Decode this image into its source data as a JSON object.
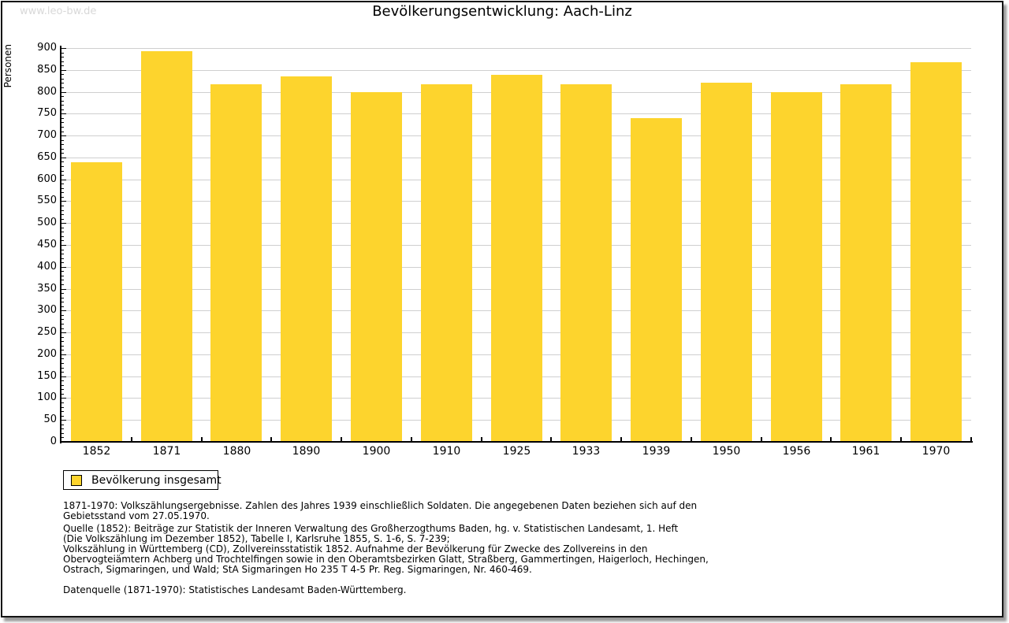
{
  "watermark": "www.leo-bw.de",
  "title": "Bevölkerungsentwicklung: Aach-Linz",
  "chart_data": {
    "type": "bar",
    "title": "Bevölkerungsentwicklung: Aach-Linz",
    "ylabel": "Personen",
    "xlabel": "",
    "categories": [
      "1852",
      "1871",
      "1880",
      "1890",
      "1900",
      "1910",
      "1925",
      "1933",
      "1939",
      "1950",
      "1956",
      "1961",
      "1970"
    ],
    "values": [
      639,
      892,
      817,
      836,
      799,
      818,
      838,
      818,
      739,
      820,
      800,
      817,
      868
    ],
    "series": [
      {
        "name": "Bevölkerung insgesamt",
        "values": [
          639,
          892,
          817,
          836,
          799,
          818,
          838,
          818,
          739,
          820,
          800,
          817,
          868
        ]
      }
    ],
    "ylim": [
      0,
      900
    ],
    "ytick_major": 50,
    "ytick_minor": 10,
    "grid": true,
    "legend_entries": [
      "Bevölkerung insgesamt"
    ],
    "legend_position": "bottom-left",
    "bar_color": "#FDD42D"
  },
  "legend": {
    "label": "Bevölkerung insgesamt"
  },
  "footnotes": {
    "para1": [
      "1871-1970: Volkszählungsergebnisse. Zahlen des Jahres 1939 einschließlich Soldaten. Die angegebenen Daten beziehen sich auf den",
      "Gebietsstand vom 27.05.1970."
    ],
    "para2": [
      "Quelle (1852): Beiträge zur Statistik der Inneren Verwaltung des Großherzogthums Baden, hg. v. Statistischen Landesamt, 1. Heft",
      "(Die Volkszählung im Dezember 1852), Tabelle I, Karlsruhe 1855, S. 1-6, S. 7-239;",
      "Volkszählung in Württemberg (CD), Zollvereinsstatistik 1852. Aufnahme der Bevölkerung für Zwecke des Zollvereins in den",
      "Obervogteiämtern Achberg und Trochtelfingen sowie in den Oberamtsbezirken Glatt, Straßberg, Gammertingen, Haigerloch, Hechingen,",
      "Ostrach, Sigmaringen, und Wald; StA Sigmaringen Ho 235 T 4-5 Pr. Reg. Sigmaringen, Nr. 460-469."
    ],
    "para3": [
      "Datenquelle (1871-1970): Statistisches Landesamt Baden-Württemberg."
    ]
  },
  "colors": {
    "bar": "#FDD42D",
    "grid": "#CFCFCF",
    "axis": "#000000",
    "watermark": "#D8D8D8",
    "frame_shadow": "#999999"
  }
}
